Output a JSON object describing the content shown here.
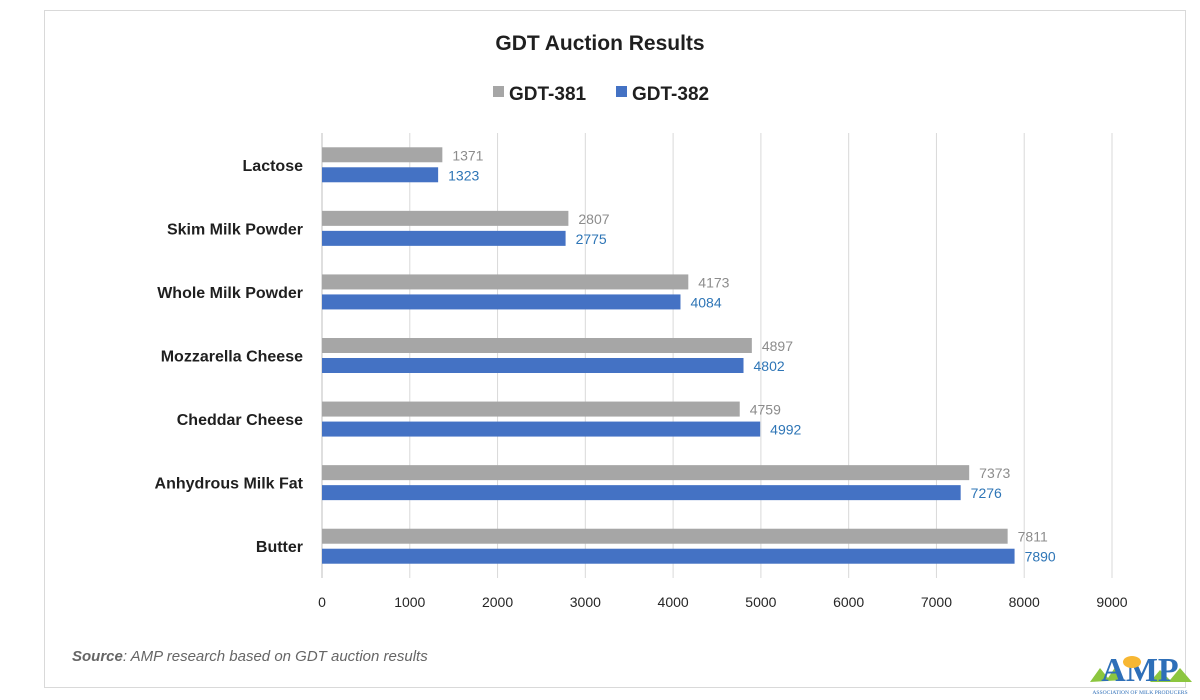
{
  "chart_data": {
    "type": "bar",
    "orientation": "horizontal",
    "title": "GDT Auction Results",
    "categories": [
      "Lactose",
      "Skim Milk Powder",
      "Whole Milk Powder",
      "Mozzarella Cheese",
      "Cheddar Cheese",
      "Anhydrous Milk Fat",
      "Butter"
    ],
    "series": [
      {
        "name": "GDT-381",
        "color": "#a6a6a6",
        "label_color": "#8c8c8c",
        "values": [
          1371,
          2807,
          4173,
          4897,
          4759,
          7373,
          7811
        ]
      },
      {
        "name": "GDT-382",
        "color": "#4472c4",
        "label_color": "#2e75b6",
        "values": [
          1323,
          2775,
          4084,
          4802,
          4992,
          7276,
          7890
        ]
      }
    ],
    "xlim": [
      0,
      9000
    ],
    "x_ticks": [
      0,
      1000,
      2000,
      3000,
      4000,
      5000,
      6000,
      7000,
      8000,
      9000
    ],
    "grid": true,
    "legend_position": "top"
  },
  "source": {
    "label": "Source",
    "text": ": AMP research based on GDT auction results"
  },
  "logo": {
    "letters": "AMP",
    "caption": "ASSOCIATION OF MILK PRODUCERS"
  }
}
